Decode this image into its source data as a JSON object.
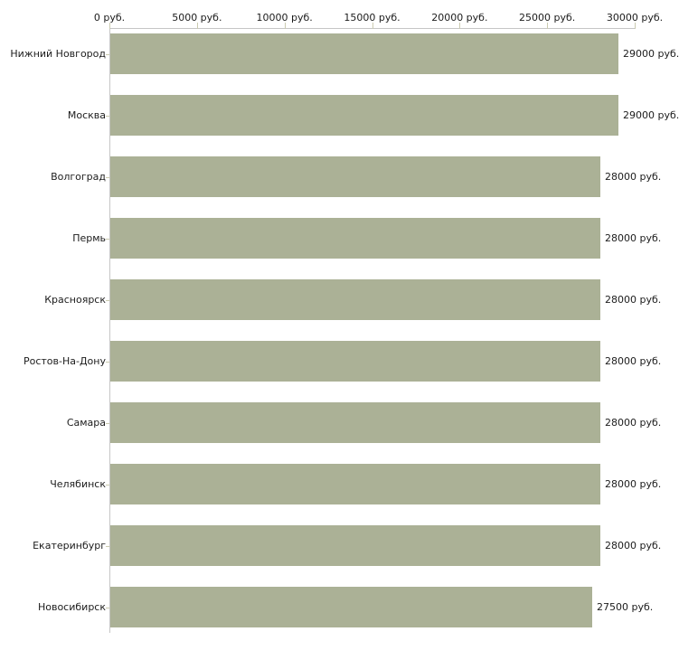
{
  "chart_data": {
    "type": "bar",
    "orientation": "horizontal",
    "title": "",
    "xlabel": "",
    "ylabel": "",
    "categories": [
      "Нижний Новгород",
      "Москва",
      "Волгоград",
      "Пермь",
      "Красноярск",
      "Ростов-На-Дону",
      "Самара",
      "Челябинск",
      "Екатеринбург",
      "Новосибирск"
    ],
    "values": [
      29000,
      29000,
      28000,
      28000,
      28000,
      28000,
      28000,
      28000,
      28000,
      27500
    ],
    "value_labels": [
      "29000 руб.",
      "29000 руб.",
      "28000 руб.",
      "28000 руб.",
      "28000 руб.",
      "28000 руб.",
      "28000 руб.",
      "28000 руб.",
      "28000 руб.",
      "27500 руб."
    ],
    "x_tick_values": [
      0,
      5000,
      10000,
      15000,
      20000,
      25000,
      30000
    ],
    "x_tick_labels": [
      "0 руб.",
      "5000 руб.",
      "10000 руб.",
      "15000 руб.",
      "20000 руб.",
      "25000 руб.",
      "30000 руб."
    ],
    "xlim": [
      0,
      30000
    ],
    "grid": false,
    "legend": null,
    "axis_position": "top",
    "colors": {
      "bar": "#abb196",
      "axis": "#c6c6c6",
      "tick": "#cbcbb0",
      "text": "#1c1c1c",
      "background": "#ffffff"
    }
  }
}
